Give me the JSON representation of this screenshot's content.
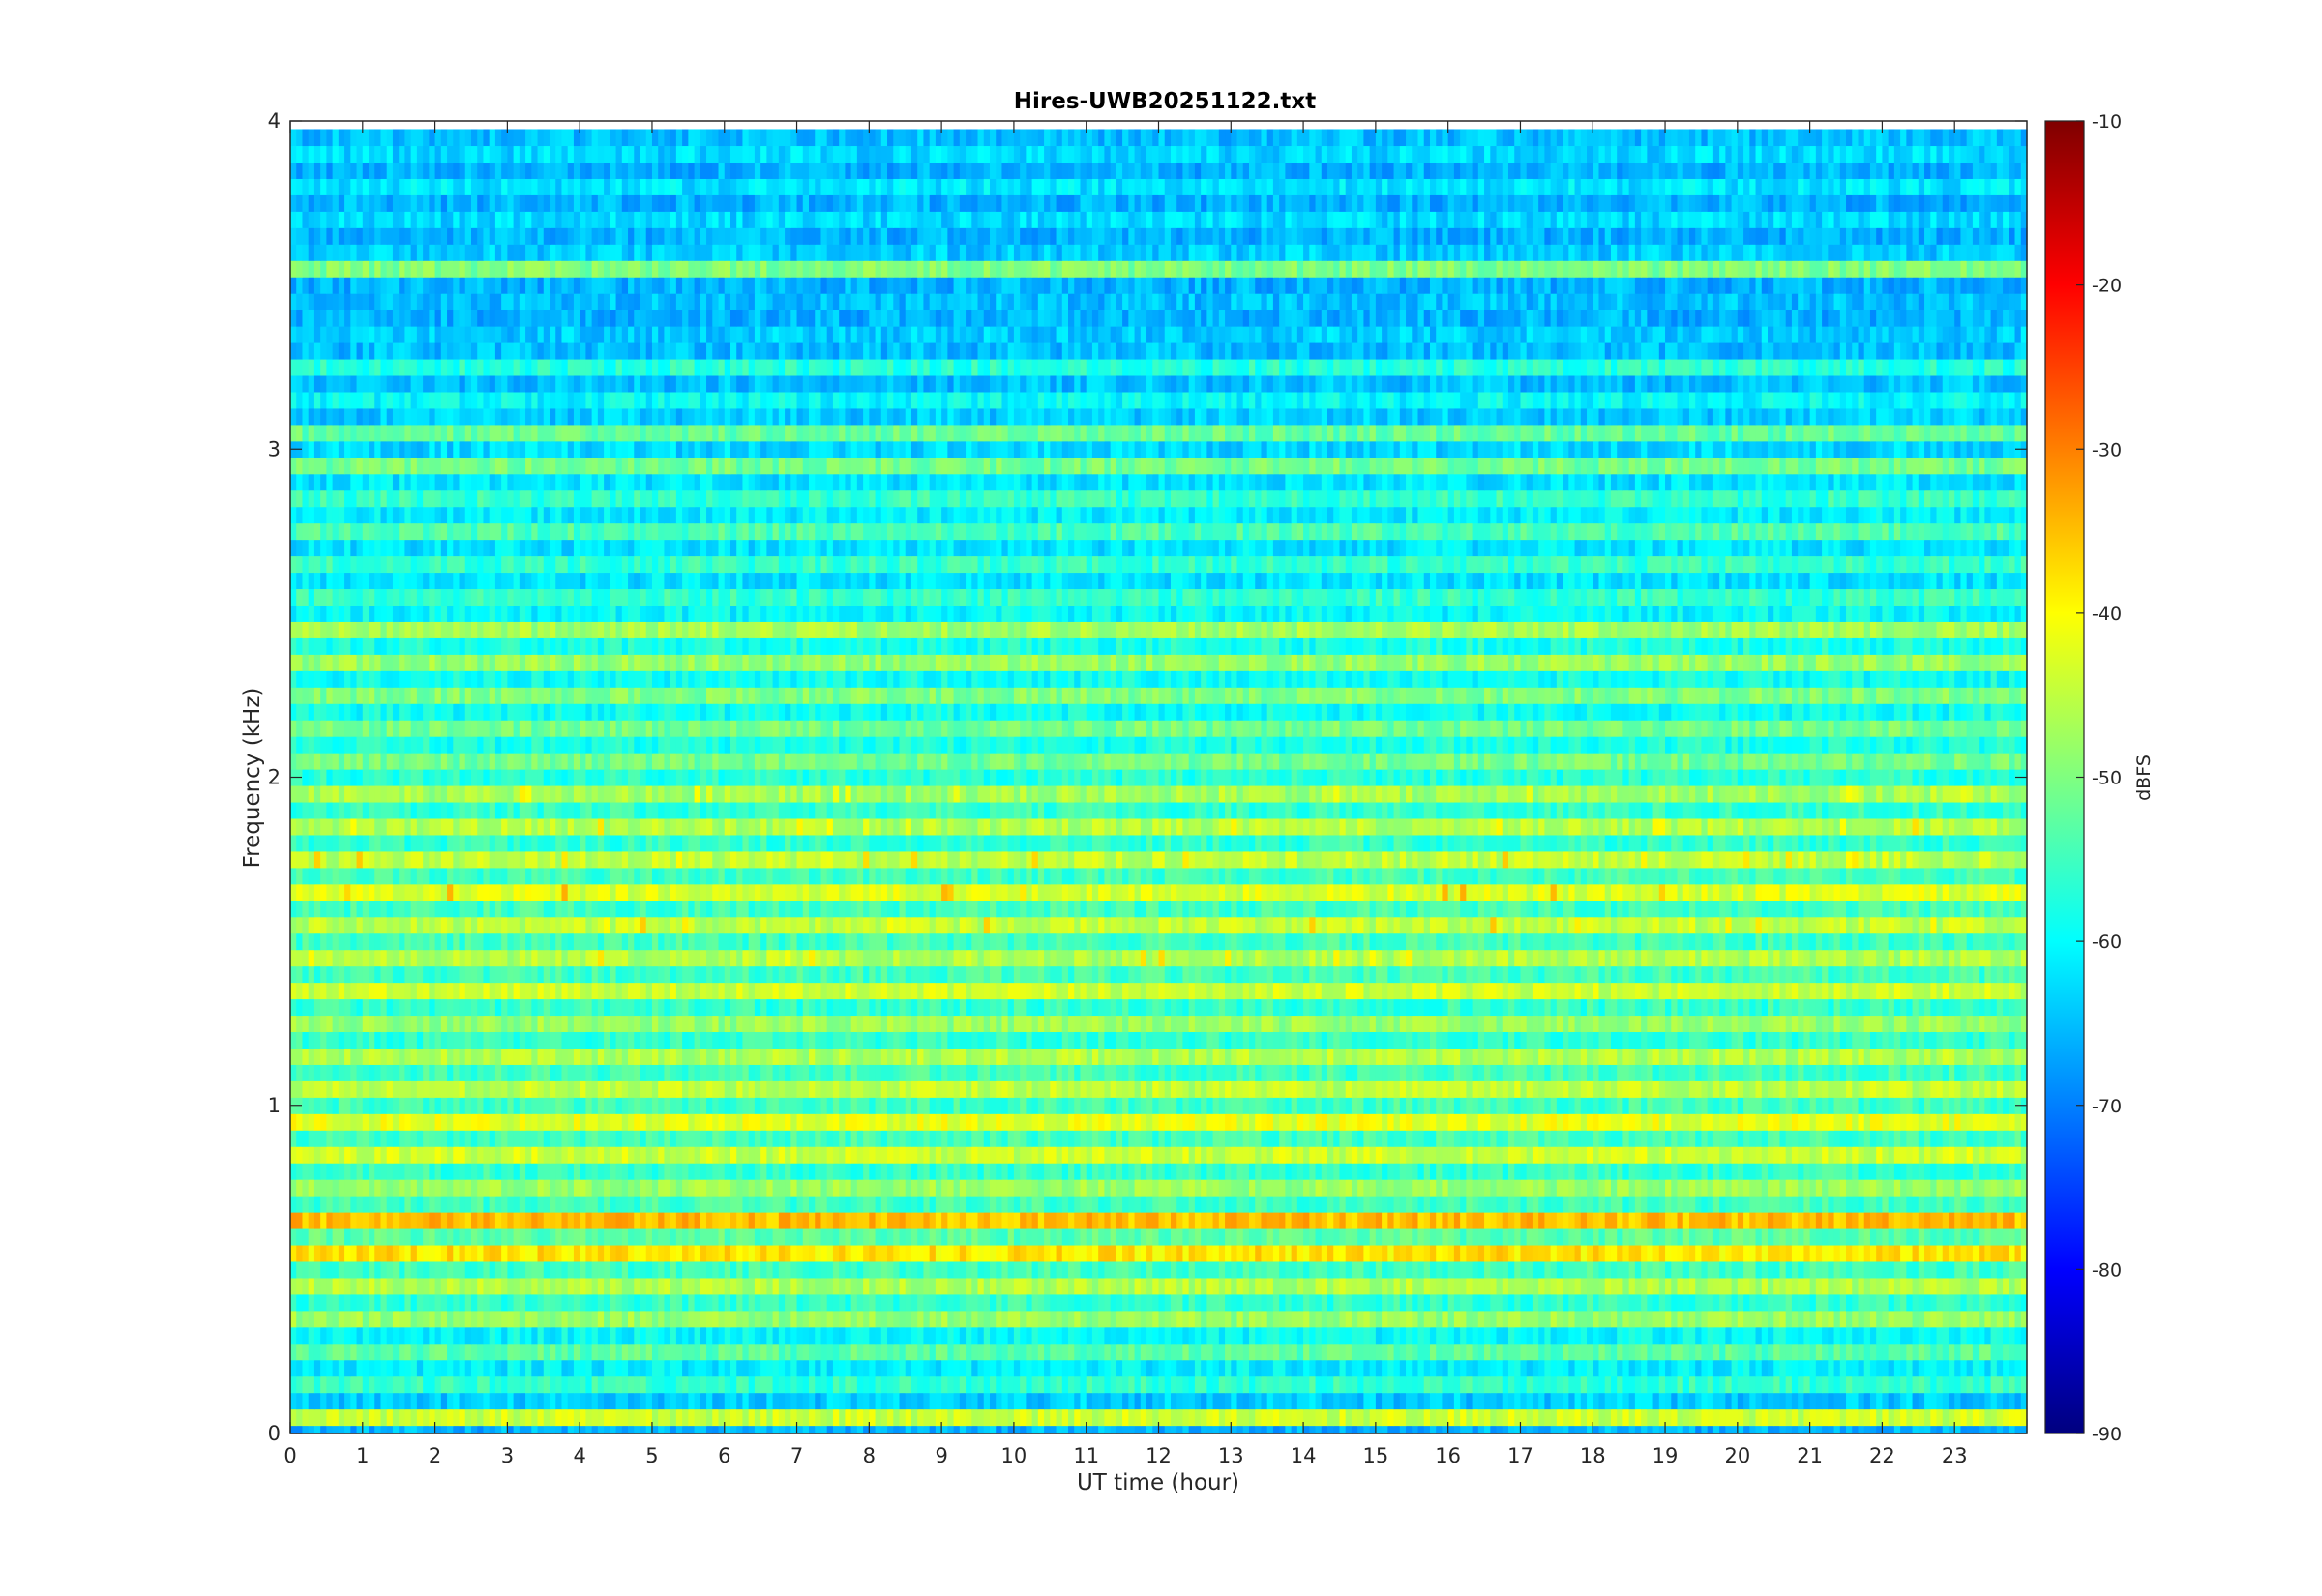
{
  "chart_data": {
    "type": "heatmap",
    "title": "Hires-UWB20251122.txt",
    "xlabel": "UT time (hour)",
    "ylabel": "Frequency (kHz)",
    "xlim": [
      0,
      24
    ],
    "ylim": [
      0,
      4
    ],
    "xticks": [
      0,
      1,
      2,
      3,
      4,
      5,
      6,
      7,
      8,
      9,
      10,
      11,
      12,
      13,
      14,
      15,
      16,
      17,
      18,
      19,
      20,
      21,
      22,
      23
    ],
    "yticks": [
      0,
      1,
      2,
      3,
      4
    ],
    "colorbar": {
      "label": "dBFS",
      "range": [
        -90,
        -10
      ],
      "ticks": [
        -10,
        -20,
        -30,
        -40,
        -50,
        -60,
        -70,
        -80,
        -90
      ],
      "colormap": "jet"
    },
    "bands": [
      {
        "f": 0.02,
        "level": -66,
        "ev": 0
      },
      {
        "f": 0.05,
        "level": -44,
        "ev": 0
      },
      {
        "f": 0.1,
        "level": -64,
        "ev": 0
      },
      {
        "f": 0.15,
        "level": -56,
        "ev": 0
      },
      {
        "f": 0.2,
        "level": -61,
        "ev": 0
      },
      {
        "f": 0.25,
        "level": -53,
        "ev": 0
      },
      {
        "f": 0.3,
        "level": -60,
        "ev": 0
      },
      {
        "f": 0.35,
        "level": -48,
        "ev": 0
      },
      {
        "f": 0.4,
        "level": -56,
        "ev": 0
      },
      {
        "f": 0.45,
        "level": -46,
        "ev": 0
      },
      {
        "f": 0.5,
        "level": -55,
        "ev": 0
      },
      {
        "f": 0.55,
        "level": -38,
        "ev": 0
      },
      {
        "f": 0.6,
        "level": -53,
        "ev": 0
      },
      {
        "f": 0.65,
        "level": -35,
        "ev": 0
      },
      {
        "f": 0.7,
        "level": -55,
        "ev": 0
      },
      {
        "f": 0.75,
        "level": -48,
        "ev": 0
      },
      {
        "f": 0.8,
        "level": -56,
        "ev": 0
      },
      {
        "f": 0.85,
        "level": -44,
        "ev": 0
      },
      {
        "f": 0.9,
        "level": -55,
        "ev": 0
      },
      {
        "f": 0.95,
        "level": -42,
        "ev": 0
      },
      {
        "f": 1.0,
        "level": -55,
        "ev": 0
      },
      {
        "f": 1.05,
        "level": -45,
        "ev": 0
      },
      {
        "f": 1.1,
        "level": -55,
        "ev": 0
      },
      {
        "f": 1.15,
        "level": -46,
        "ev": 0
      },
      {
        "f": 1.2,
        "level": -56,
        "ev": 0
      },
      {
        "f": 1.25,
        "level": -48,
        "ev": 0
      },
      {
        "f": 1.3,
        "level": -56,
        "ev": 0
      },
      {
        "f": 1.35,
        "level": -44,
        "ev": 0
      },
      {
        "f": 1.4,
        "level": -55,
        "ev": 0
      },
      {
        "f": 1.45,
        "level": -46,
        "ev": 1
      },
      {
        "f": 1.5,
        "level": -55,
        "ev": 0
      },
      {
        "f": 1.55,
        "level": -45,
        "ev": 1
      },
      {
        "f": 1.6,
        "level": -55,
        "ev": 0
      },
      {
        "f": 1.65,
        "level": -43,
        "ev": 1
      },
      {
        "f": 1.7,
        "level": -55,
        "ev": 0
      },
      {
        "f": 1.75,
        "level": -45,
        "ev": 1
      },
      {
        "f": 1.8,
        "level": -56,
        "ev": 0
      },
      {
        "f": 1.85,
        "level": -46,
        "ev": 1
      },
      {
        "f": 1.9,
        "level": -56,
        "ev": 0
      },
      {
        "f": 1.95,
        "level": -47,
        "ev": 1
      },
      {
        "f": 2.0,
        "level": -57,
        "ev": 0
      },
      {
        "f": 2.05,
        "level": -51,
        "ev": 0
      },
      {
        "f": 2.1,
        "level": -58,
        "ev": 0
      },
      {
        "f": 2.15,
        "level": -51,
        "ev": 0
      },
      {
        "f": 2.2,
        "level": -59,
        "ev": 0
      },
      {
        "f": 2.25,
        "level": -50,
        "ev": 0
      },
      {
        "f": 2.3,
        "level": -59,
        "ev": 0
      },
      {
        "f": 2.35,
        "level": -48,
        "ev": 0
      },
      {
        "f": 2.4,
        "level": -58,
        "ev": 0
      },
      {
        "f": 2.45,
        "level": -47,
        "ev": 0
      },
      {
        "f": 2.5,
        "level": -60,
        "ev": 0
      },
      {
        "f": 2.55,
        "level": -56,
        "ev": 0
      },
      {
        "f": 2.6,
        "level": -62,
        "ev": 0
      },
      {
        "f": 2.65,
        "level": -56,
        "ev": 0
      },
      {
        "f": 2.7,
        "level": -62,
        "ev": 0
      },
      {
        "f": 2.75,
        "level": -54,
        "ev": 0
      },
      {
        "f": 2.8,
        "level": -61,
        "ev": 0
      },
      {
        "f": 2.85,
        "level": -56,
        "ev": 0
      },
      {
        "f": 2.9,
        "level": -62,
        "ev": 0
      },
      {
        "f": 2.95,
        "level": -51,
        "ev": 0
      },
      {
        "f": 3.0,
        "level": -63,
        "ev": 0
      },
      {
        "f": 3.05,
        "level": -52,
        "ev": 0
      },
      {
        "f": 3.1,
        "level": -64,
        "ev": 0
      },
      {
        "f": 3.15,
        "level": -60,
        "ev": 0
      },
      {
        "f": 3.2,
        "level": -65,
        "ev": 0
      },
      {
        "f": 3.25,
        "level": -57,
        "ev": 0
      },
      {
        "f": 3.3,
        "level": -65,
        "ev": 0
      },
      {
        "f": 3.35,
        "level": -64,
        "ev": 0
      },
      {
        "f": 3.4,
        "level": -66,
        "ev": 0
      },
      {
        "f": 3.45,
        "level": -65,
        "ev": 0
      },
      {
        "f": 3.5,
        "level": -66,
        "ev": 0
      },
      {
        "f": 3.55,
        "level": -50,
        "ev": 0
      },
      {
        "f": 3.6,
        "level": -64,
        "ev": 0
      },
      {
        "f": 3.65,
        "level": -66,
        "ev": 0
      },
      {
        "f": 3.7,
        "level": -63,
        "ev": 0
      },
      {
        "f": 3.75,
        "level": -66,
        "ev": 0
      },
      {
        "f": 3.8,
        "level": -62,
        "ev": 0
      },
      {
        "f": 3.85,
        "level": -66,
        "ev": 0
      },
      {
        "f": 3.9,
        "level": -63,
        "ev": 0
      },
      {
        "f": 3.95,
        "level": -65,
        "ev": 0
      }
    ]
  }
}
